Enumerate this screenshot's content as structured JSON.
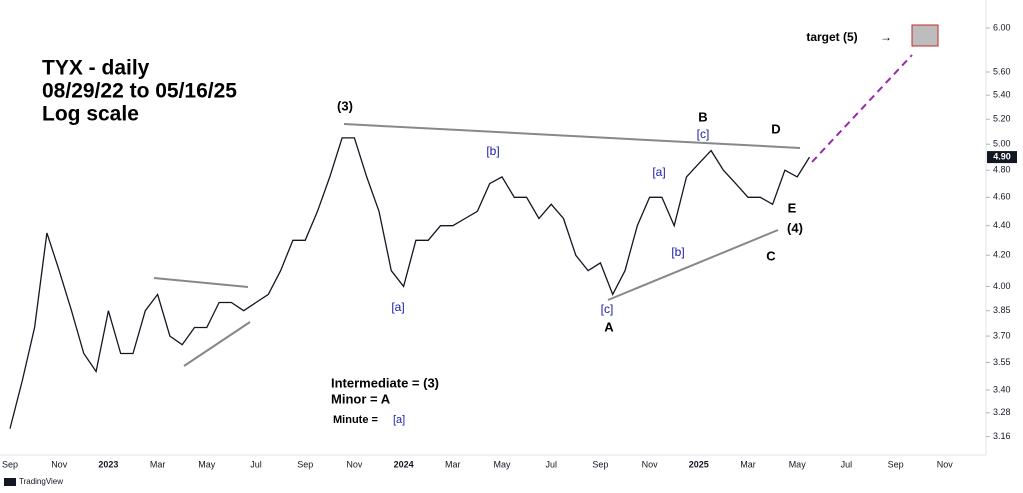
{
  "chart_data": {
    "type": "line",
    "title_lines": [
      "TYX - daily",
      "08/29/22 to 05/16/25",
      "Log scale"
    ],
    "log_scale": true,
    "grid": false,
    "categories": [
      "Sep",
      null,
      null,
      null,
      "Nov",
      null,
      null,
      null,
      "2023",
      null,
      null,
      null,
      "Mar",
      null,
      null,
      null,
      "May",
      null,
      null,
      null,
      "Jul",
      null,
      null,
      null,
      "Sep",
      null,
      null,
      null,
      "Nov",
      null,
      null,
      null,
      "2024",
      null,
      null,
      null,
      "Mar",
      null,
      null,
      null,
      "May",
      null,
      null,
      null,
      "Jul",
      null,
      null,
      null,
      "Sep",
      null,
      null,
      null,
      "Nov",
      null,
      null,
      null,
      "2025",
      null,
      null,
      null,
      "Mar",
      null,
      null,
      null,
      "May",
      null,
      null,
      null,
      "Jul",
      null,
      null,
      null,
      "Sep",
      null,
      null,
      null,
      "Nov",
      null,
      null,
      null
    ],
    "series": [
      {
        "name": "TYX",
        "color": "#131722",
        "values": [
          3.2,
          3.45,
          3.75,
          4.35,
          4.1,
          3.85,
          3.6,
          3.5,
          3.85,
          3.6,
          3.6,
          3.85,
          3.95,
          3.7,
          3.65,
          3.75,
          3.75,
          3.9,
          3.9,
          3.85,
          3.9,
          3.95,
          4.1,
          4.3,
          4.3,
          4.5,
          4.75,
          5.05,
          5.05,
          4.75,
          4.5,
          4.1,
          4.0,
          4.3,
          4.3,
          4.4,
          4.4,
          4.45,
          4.5,
          4.7,
          4.75,
          4.6,
          4.6,
          4.45,
          4.55,
          4.45,
          4.2,
          4.1,
          4.15,
          3.95,
          4.1,
          4.4,
          4.6,
          4.6,
          4.4,
          4.75,
          4.85,
          4.95,
          4.8,
          4.7,
          4.6,
          4.6,
          4.55,
          4.8,
          4.75,
          4.9,
          null,
          null,
          null,
          null,
          null,
          null,
          null,
          null,
          null,
          null,
          null,
          null,
          null,
          null
        ]
      }
    ],
    "ylim": [
      3.07,
      6.27
    ],
    "yticks": [
      3.16,
      3.28,
      {
        "value": 3.4,
        "label": "3.40"
      },
      3.55,
      {
        "value": 3.7,
        "label": "3.70"
      },
      3.85,
      {
        "value": 4.0,
        "label": "4.00"
      },
      {
        "value": 4.2,
        "label": "4.20"
      },
      {
        "value": 4.4,
        "label": "4.40"
      },
      {
        "value": 4.6,
        "label": "4.60"
      },
      {
        "value": 4.8,
        "label": "4.80"
      },
      {
        "value": 5.0,
        "label": "5.00"
      },
      {
        "value": 5.2,
        "label": "5.20"
      },
      {
        "value": 5.4,
        "label": "5.40"
      },
      {
        "value": 5.6,
        "label": "5.60"
      },
      {
        "value": 6.0,
        "label": "6.00"
      }
    ],
    "price_tag": {
      "value": 4.9,
      "label": "4.90"
    },
    "annotations": [
      {
        "text": "(3)",
        "color": "#000000"
      },
      {
        "text": "[a]",
        "color": "#1a1aa6"
      },
      {
        "text": "[b]",
        "color": "#1a1aa6"
      },
      {
        "text": "[c]",
        "color": "#1a1aa6"
      },
      {
        "text": "A",
        "color": "#000000"
      },
      {
        "text": "[a]",
        "color": "#1a1aa6"
      },
      {
        "text": "[b]",
        "color": "#1a1aa6"
      },
      {
        "text": "B",
        "color": "#000000"
      },
      {
        "text": "[c]",
        "color": "#1a1aa6"
      },
      {
        "text": "C",
        "color": "#000000"
      },
      {
        "text": "D",
        "color": "#000000"
      },
      {
        "text": "E",
        "color": "#000000"
      },
      {
        "text": "(4)",
        "color": "#000000"
      },
      {
        "text": "target (5)",
        "color": "#000000"
      },
      {
        "text": "→",
        "color": "#000000"
      }
    ],
    "legend": {
      "intermediate": "Intermediate = (3)",
      "minor": "Minor = A",
      "minute": "Minute = ",
      "minute_symbol": "[a]"
    },
    "brand": "TradingView"
  }
}
